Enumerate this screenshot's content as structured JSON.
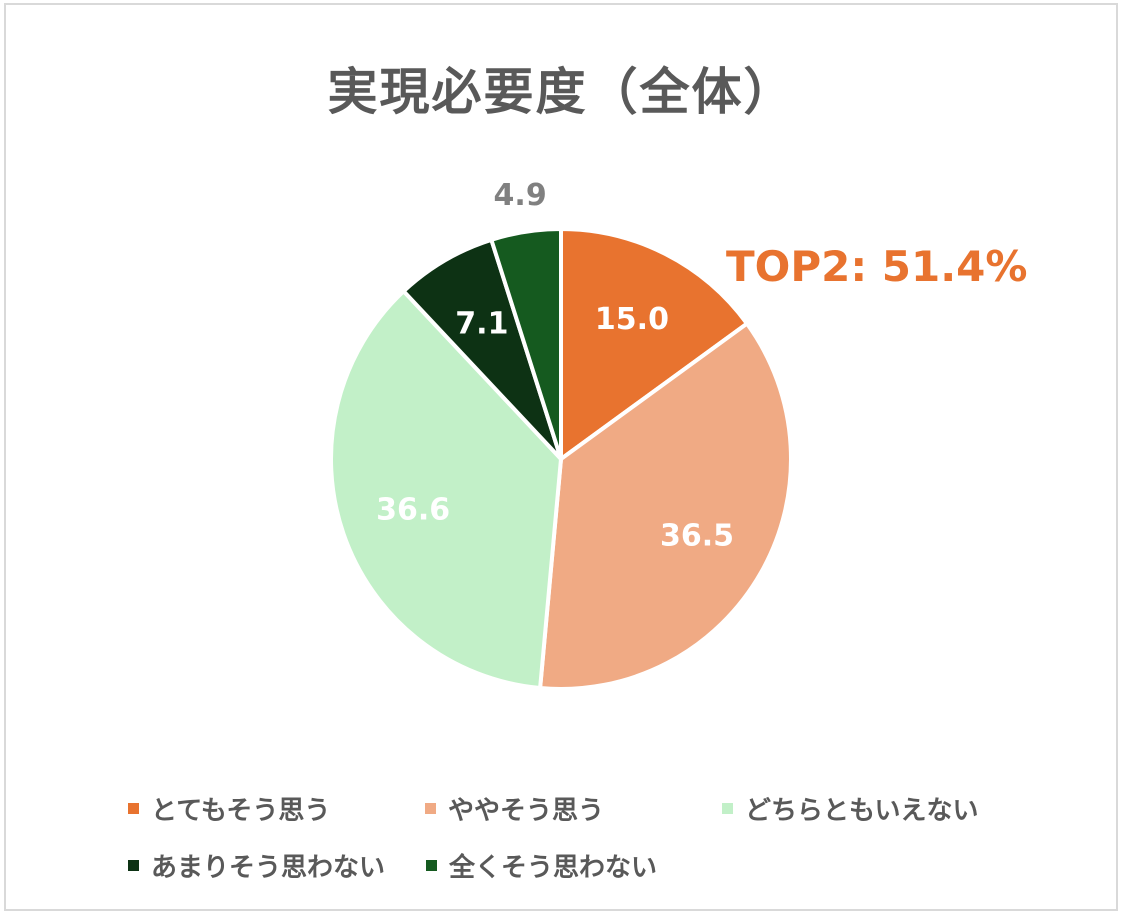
{
  "chart_data": {
    "type": "pie",
    "title": "実現必要度（全体）",
    "annotation": "TOP2: 51.4%",
    "categories": [
      "とてもそう思う",
      "ややそう思う",
      "どちらともいえない",
      "あまりそう思わない",
      "全くそう思わない"
    ],
    "values": [
      15.0,
      36.5,
      36.6,
      7.1,
      4.9
    ],
    "data_labels": [
      "15.0",
      "36.5",
      "36.6",
      "7.1",
      "4.9"
    ],
    "colors": [
      "#e8732f",
      "#f0aa84",
      "#c2f0c8",
      "#0d3214",
      "#155a1f"
    ],
    "label_colors": [
      "#ffffff",
      "#ffffff",
      "#ffffff",
      "#ffffff",
      "#808080"
    ],
    "legend_position": "bottom",
    "start_angle_deg": 0,
    "direction": "clockwise"
  }
}
